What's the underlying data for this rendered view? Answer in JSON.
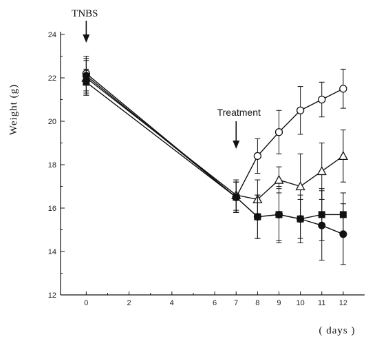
{
  "chart_data": {
    "type": "line",
    "title": "",
    "xlabel": "( days )",
    "ylabel": "Weight  (g)",
    "xlim": [
      -1.2,
      13
    ],
    "ylim": [
      12,
      24
    ],
    "xticks": [
      0,
      2,
      4,
      6,
      7,
      8,
      9,
      10,
      11,
      12
    ],
    "yticks": [
      12,
      14,
      16,
      18,
      20,
      22,
      24
    ],
    "grid": false,
    "legend": "none",
    "annotations": [
      {
        "text": "TNBS",
        "x": 0
      },
      {
        "text": "Treatment",
        "x": 7
      }
    ],
    "series": [
      {
        "marker": "open-circle",
        "x": [
          0,
          7,
          8,
          9,
          10,
          11,
          12
        ],
        "values": [
          22.2,
          16.5,
          18.4,
          19.5,
          20.5,
          21.0,
          21.5
        ],
        "err": [
          0.8,
          0.7,
          0.8,
          1.0,
          1.1,
          0.8,
          0.9
        ]
      },
      {
        "marker": "open-triangle",
        "x": [
          0,
          7,
          8,
          9,
          10,
          11,
          12
        ],
        "values": [
          22.0,
          16.6,
          16.4,
          17.3,
          17.0,
          17.7,
          18.4
        ],
        "err": [
          0.8,
          0.7,
          0.9,
          0.6,
          1.5,
          1.3,
          1.2
        ]
      },
      {
        "marker": "filled-square",
        "x": [
          0,
          7,
          8,
          9,
          10,
          11,
          12
        ],
        "values": [
          21.8,
          16.5,
          15.6,
          15.7,
          15.5,
          15.7,
          15.7
        ],
        "err": [
          0.6,
          0.7,
          1.0,
          1.2,
          0.9,
          1.2,
          1.0
        ]
      },
      {
        "marker": "filled-circle",
        "x": [
          0,
          7,
          8,
          9,
          10,
          11,
          12
        ],
        "values": [
          22.1,
          16.5,
          15.6,
          15.7,
          15.5,
          15.2,
          14.8
        ],
        "err": [
          0.8,
          0.7,
          1.0,
          1.3,
          1.1,
          1.6,
          1.4
        ]
      }
    ]
  }
}
